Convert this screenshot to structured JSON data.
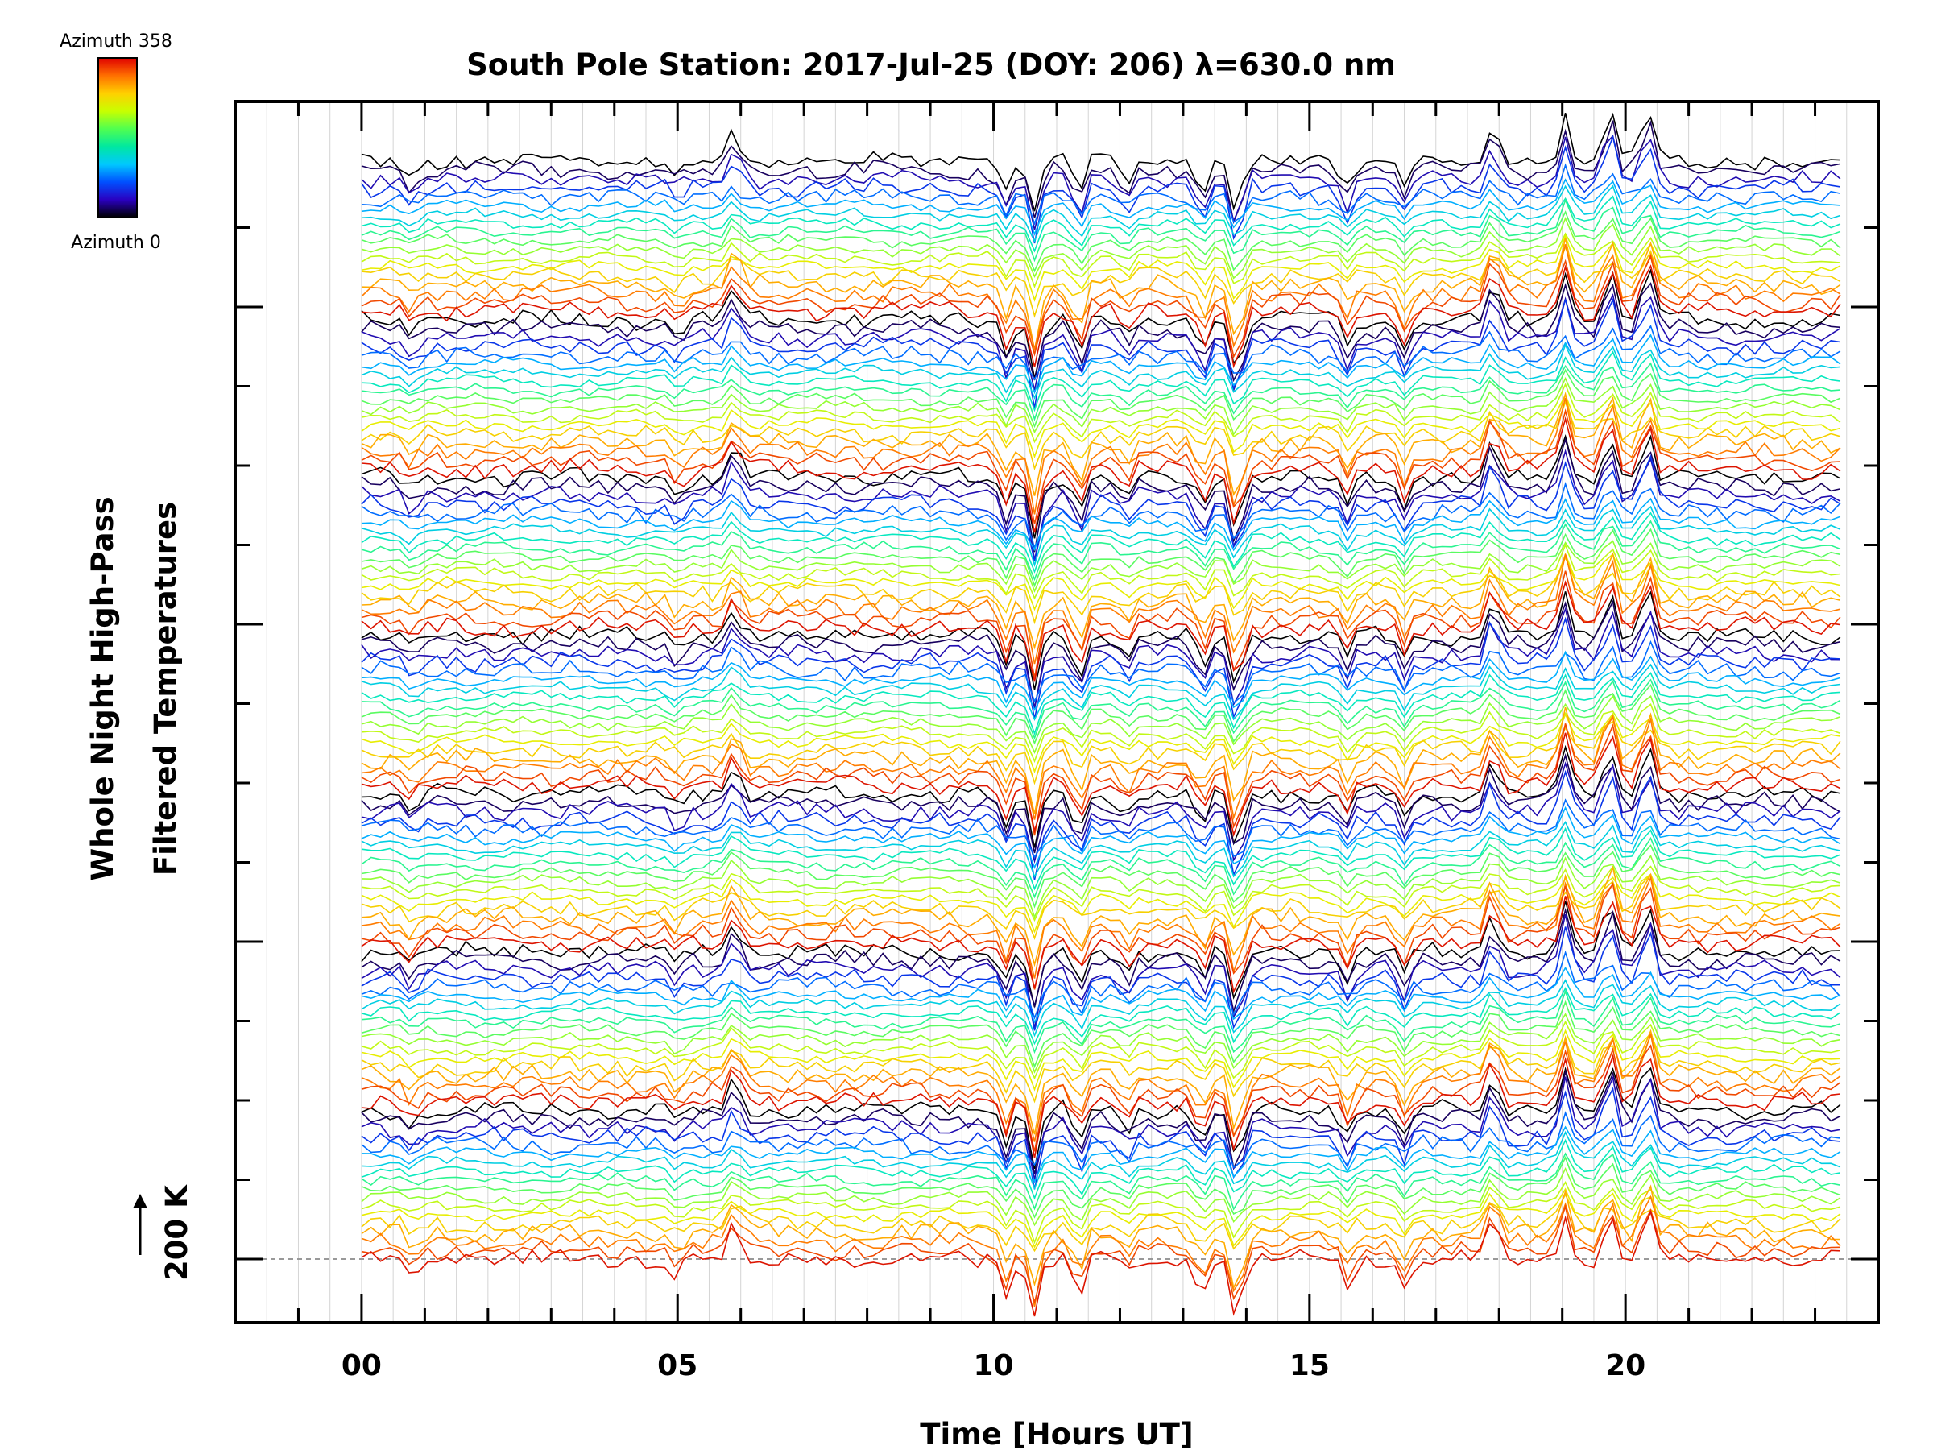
{
  "chart_data": {
    "type": "line",
    "title": "South Pole Station: 2017-Jul-25 (DOY: 206) λ=630.0 nm",
    "xlabel": "Time [Hours UT]",
    "ylabel_line1": "Whole Night High-Pass",
    "ylabel_line2": "Filtered Temperatures",
    "scale_label": "200 K",
    "xlim": [
      -2,
      24
    ],
    "x_tick_labels": [
      {
        "value": 0,
        "label": "00"
      },
      {
        "value": 5,
        "label": "05"
      },
      {
        "value": 10,
        "label": "10"
      },
      {
        "value": 15,
        "label": "15"
      },
      {
        "value": 20,
        "label": "20"
      }
    ],
    "grid": "vertical lines every 0.5 hour",
    "colorbar": {
      "top_label": "Azimuth 358",
      "bottom_label": "Azimuth 0",
      "min": 0,
      "max": 358,
      "colors": [
        "#000000",
        "#2a00c0",
        "#0050ff",
        "#00c8ff",
        "#00e8a0",
        "#50ff50",
        "#c8ff00",
        "#ffd000",
        "#ff7000",
        "#e00000"
      ]
    },
    "series_groups": 7,
    "traces_per_group": 18,
    "time_range_hours": [
      0,
      23.5
    ],
    "baseline_offset_k": 200,
    "event_spikes": [
      {
        "time": 0.8,
        "amp": -0.5
      },
      {
        "time": 5.0,
        "amp": -0.5
      },
      {
        "time": 5.9,
        "amp": 1.0
      },
      {
        "time": 10.2,
        "amp": -1.0
      },
      {
        "time": 10.65,
        "amp": -1.8
      },
      {
        "time": 11.35,
        "amp": -1.2
      },
      {
        "time": 12.1,
        "amp": -0.6
      },
      {
        "time": 13.3,
        "amp": -1.0
      },
      {
        "time": 13.85,
        "amp": -1.8
      },
      {
        "time": 15.6,
        "amp": -0.8
      },
      {
        "time": 16.5,
        "amp": -0.9
      },
      {
        "time": 17.9,
        "amp": 1.2
      },
      {
        "time": 19.05,
        "amp": 1.5
      },
      {
        "time": 19.75,
        "amp": 1.6
      },
      {
        "time": 20.35,
        "amp": 1.6
      }
    ]
  }
}
